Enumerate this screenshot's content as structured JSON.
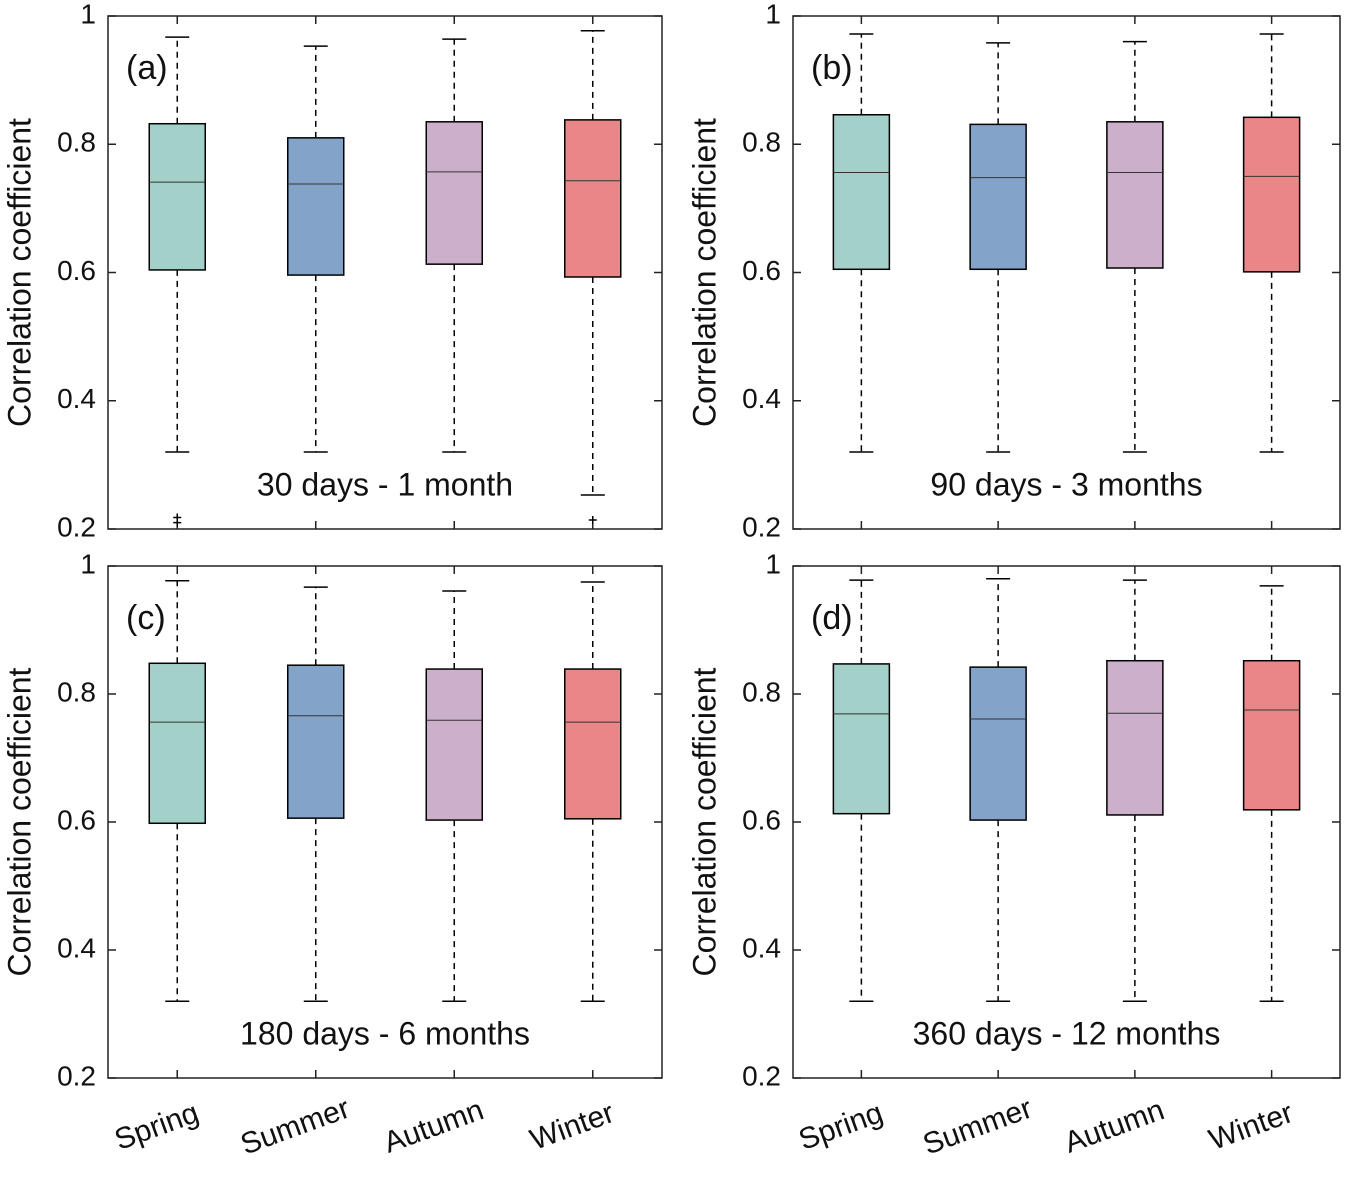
{
  "chart_data": [
    {
      "type": "box",
      "label": "(a)",
      "annotation": "30 days - 1 month",
      "y_label": "Correlation coefficient",
      "ylim": [
        0.2,
        1
      ],
      "yticks": [
        0.2,
        0.4,
        0.6,
        0.8,
        1
      ],
      "colors": [
        "#a3d0c9",
        "#84a3c8",
        "#ccb0cb",
        "#e98788"
      ],
      "boxes": [
        {
          "whislo": 0.32,
          "q1": 0.604,
          "med": 0.741,
          "q3": 0.832,
          "whishi": 0.967,
          "fliers": [
            0.218,
            0.21
          ]
        },
        {
          "whislo": 0.32,
          "q1": 0.596,
          "med": 0.738,
          "q3": 0.81,
          "whishi": 0.953
        },
        {
          "whislo": 0.32,
          "q1": 0.613,
          "med": 0.757,
          "q3": 0.835,
          "whishi": 0.964
        },
        {
          "whislo": 0.253,
          "q1": 0.593,
          "med": 0.743,
          "q3": 0.838,
          "whishi": 0.977,
          "fliers": [
            0.214
          ]
        }
      ]
    },
    {
      "type": "box",
      "label": "(b)",
      "annotation": "90 days - 3 months",
      "y_label": "Correlation coefficient",
      "ylim": [
        0.2,
        1
      ],
      "yticks": [
        0.2,
        0.4,
        0.6,
        0.8,
        1
      ],
      "colors": [
        "#a3d0c9",
        "#84a3c8",
        "#ccb0cb",
        "#e98788"
      ],
      "boxes": [
        {
          "whislo": 0.32,
          "q1": 0.605,
          "med": 0.756,
          "q3": 0.846,
          "whishi": 0.972
        },
        {
          "whislo": 0.32,
          "q1": 0.605,
          "med": 0.748,
          "q3": 0.831,
          "whishi": 0.958
        },
        {
          "whislo": 0.32,
          "q1": 0.607,
          "med": 0.756,
          "q3": 0.835,
          "whishi": 0.96
        },
        {
          "whislo": 0.32,
          "q1": 0.601,
          "med": 0.75,
          "q3": 0.842,
          "whishi": 0.972
        }
      ]
    },
    {
      "type": "box",
      "label": "(c)",
      "annotation": "180 days - 6 months",
      "y_label": "Correlation coefficient",
      "categories": [
        "Spring",
        "Summer",
        "Autumn",
        "Winter"
      ],
      "ylim": [
        0.2,
        1
      ],
      "yticks": [
        0.2,
        0.4,
        0.6,
        0.8,
        1
      ],
      "colors": [
        "#a3d0c9",
        "#84a3c8",
        "#ccb0cb",
        "#e98788"
      ],
      "boxes": [
        {
          "whislo": 0.32,
          "q1": 0.598,
          "med": 0.756,
          "q3": 0.848,
          "whishi": 0.977
        },
        {
          "whislo": 0.32,
          "q1": 0.606,
          "med": 0.766,
          "q3": 0.845,
          "whishi": 0.967
        },
        {
          "whislo": 0.32,
          "q1": 0.603,
          "med": 0.759,
          "q3": 0.839,
          "whishi": 0.961
        },
        {
          "whislo": 0.32,
          "q1": 0.605,
          "med": 0.756,
          "q3": 0.839,
          "whishi": 0.975
        }
      ]
    },
    {
      "type": "box",
      "label": "(d)",
      "annotation": "360 days - 12 months",
      "y_label": "Correlation coefficient",
      "categories": [
        "Spring",
        "Summer",
        "Autumn",
        "Winter"
      ],
      "ylim": [
        0.2,
        1
      ],
      "yticks": [
        0.2,
        0.4,
        0.6,
        0.8,
        1
      ],
      "colors": [
        "#a3d0c9",
        "#84a3c8",
        "#ccb0cb",
        "#e98788"
      ],
      "boxes": [
        {
          "whislo": 0.32,
          "q1": 0.613,
          "med": 0.769,
          "q3": 0.847,
          "whishi": 0.978
        },
        {
          "whislo": 0.32,
          "q1": 0.603,
          "med": 0.761,
          "q3": 0.842,
          "whishi": 0.98
        },
        {
          "whislo": 0.32,
          "q1": 0.611,
          "med": 0.77,
          "q3": 0.852,
          "whishi": 0.978
        },
        {
          "whislo": 0.32,
          "q1": 0.619,
          "med": 0.775,
          "q3": 0.852,
          "whishi": 0.969
        }
      ]
    }
  ]
}
